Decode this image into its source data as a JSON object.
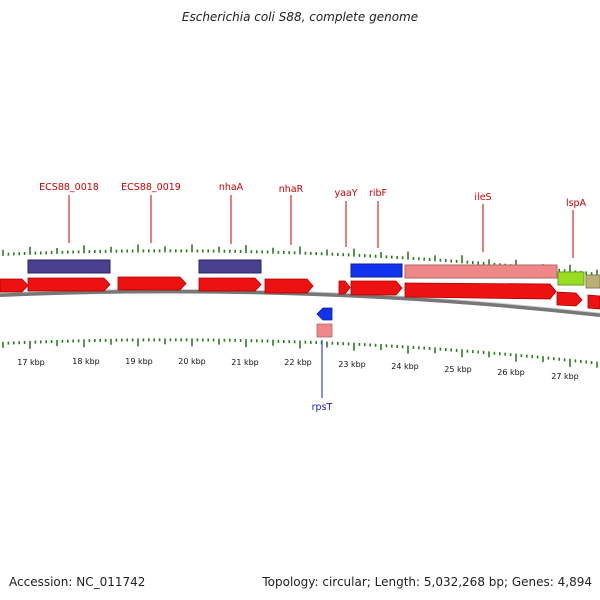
{
  "title": "Escherichia coli S88, complete genome",
  "footer": {
    "accession": "Accession: NC_011742",
    "topology": "Topology: circular; Length: 5,032,268 bp; Genes: 4,894"
  },
  "colors": {
    "forward_cds": "#ee1111",
    "reverse_cds": "#1133ee",
    "gene_dark": "#4a4090",
    "gene_pink": "#ee8888",
    "gene_lime": "#99dd22",
    "gene_olive": "#bbb077",
    "label_red": "#cc0000",
    "label_blue": "#1a1acc",
    "tick_green": "#2d7a1f",
    "backbone": "#888888"
  },
  "axis": {
    "unit": "kbp",
    "tick_labels": [
      "17 kbp",
      "18 kbp",
      "19 kbp",
      "20 kbp",
      "21 kbp",
      "22 kbp",
      "23 kbp",
      "24 kbp",
      "25 kbp",
      "26 kbp",
      "27 kbp"
    ]
  },
  "top_labels": [
    {
      "name": "ECS88_0018",
      "color": "red"
    },
    {
      "name": "ECS88_0019",
      "color": "red"
    },
    {
      "name": "nhaA",
      "color": "red"
    },
    {
      "name": "nhaR",
      "color": "red"
    },
    {
      "name": "yaaY",
      "color": "red"
    },
    {
      "name": "ribF",
      "color": "red"
    },
    {
      "name": "ileS",
      "color": "red"
    },
    {
      "name": "lspA",
      "color": "red"
    }
  ],
  "bottom_labels": [
    {
      "name": "rpsT",
      "color": "blue"
    }
  ]
}
